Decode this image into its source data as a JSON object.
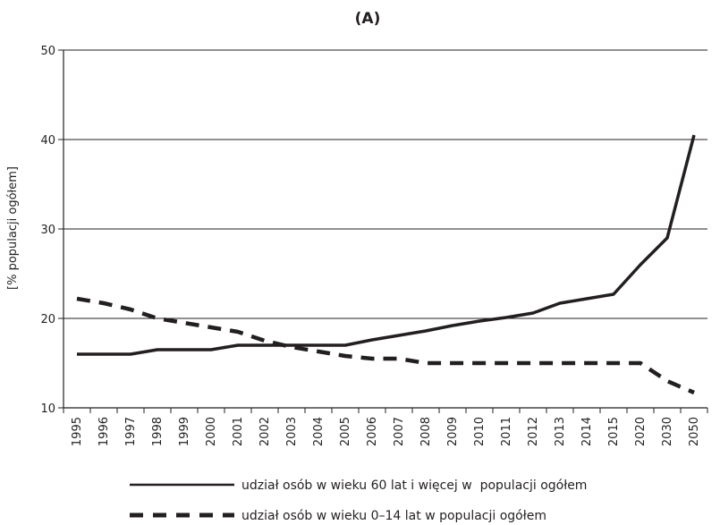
{
  "chart_data": {
    "type": "line",
    "title": "(A)",
    "ylabel": "[% populacji ogółem]",
    "xlabel": "",
    "ylim": [
      10,
      50
    ],
    "yticks": [
      10,
      20,
      30,
      40,
      50
    ],
    "grid": "horizontal",
    "legend_position": "bottom",
    "categories": [
      "1995",
      "1996",
      "1997",
      "1998",
      "1999",
      "2000",
      "2001",
      "2002",
      "2003",
      "2004",
      "2005",
      "2006",
      "2007",
      "2008",
      "2009",
      "2010",
      "2011",
      "2012",
      "2013",
      "2014",
      "2015",
      "2020",
      "2030",
      "2050"
    ],
    "series": [
      {
        "name": "udział osób w wieku 60 lat i więcej w  populacji ogółem",
        "style": "solid",
        "color": "#231f20",
        "values": [
          16,
          16,
          16,
          16.5,
          16.5,
          16.5,
          17,
          17,
          17,
          17,
          17,
          17.6,
          18.1,
          18.6,
          19.2,
          19.7,
          20.1,
          20.6,
          21.7,
          22.2,
          22.7,
          26,
          29,
          40.5
        ]
      },
      {
        "name": "udział osób w wieku 0–14 lat w populacji ogółem",
        "style": "dashed",
        "color": "#231f20",
        "values": [
          22.2,
          21.7,
          21,
          20,
          19.5,
          19,
          18.5,
          17.5,
          16.8,
          16.3,
          15.8,
          15.5,
          15.5,
          15,
          15,
          15,
          15,
          15,
          15,
          15,
          15,
          15,
          13,
          11.7
        ]
      }
    ]
  }
}
